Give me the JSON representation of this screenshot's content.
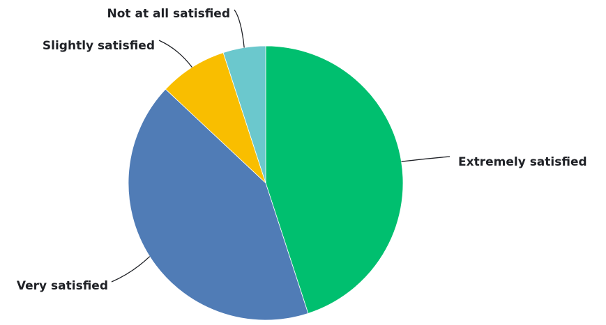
{
  "chart_data": {
    "type": "pie",
    "title": "",
    "categories": [
      "Extremely satisfied",
      "Very satisfied",
      "Slightly satisfied",
      "Not at all satisfied"
    ],
    "values": [
      45.0,
      42.0,
      8.0,
      5.0
    ],
    "colors": [
      "#00bf6f",
      "#507cb6",
      "#f9be00",
      "#6bc8cd"
    ],
    "start_angle_deg": 0,
    "direction": "clockwise",
    "legend": "none",
    "labels": "outside-with-leader-lines"
  }
}
